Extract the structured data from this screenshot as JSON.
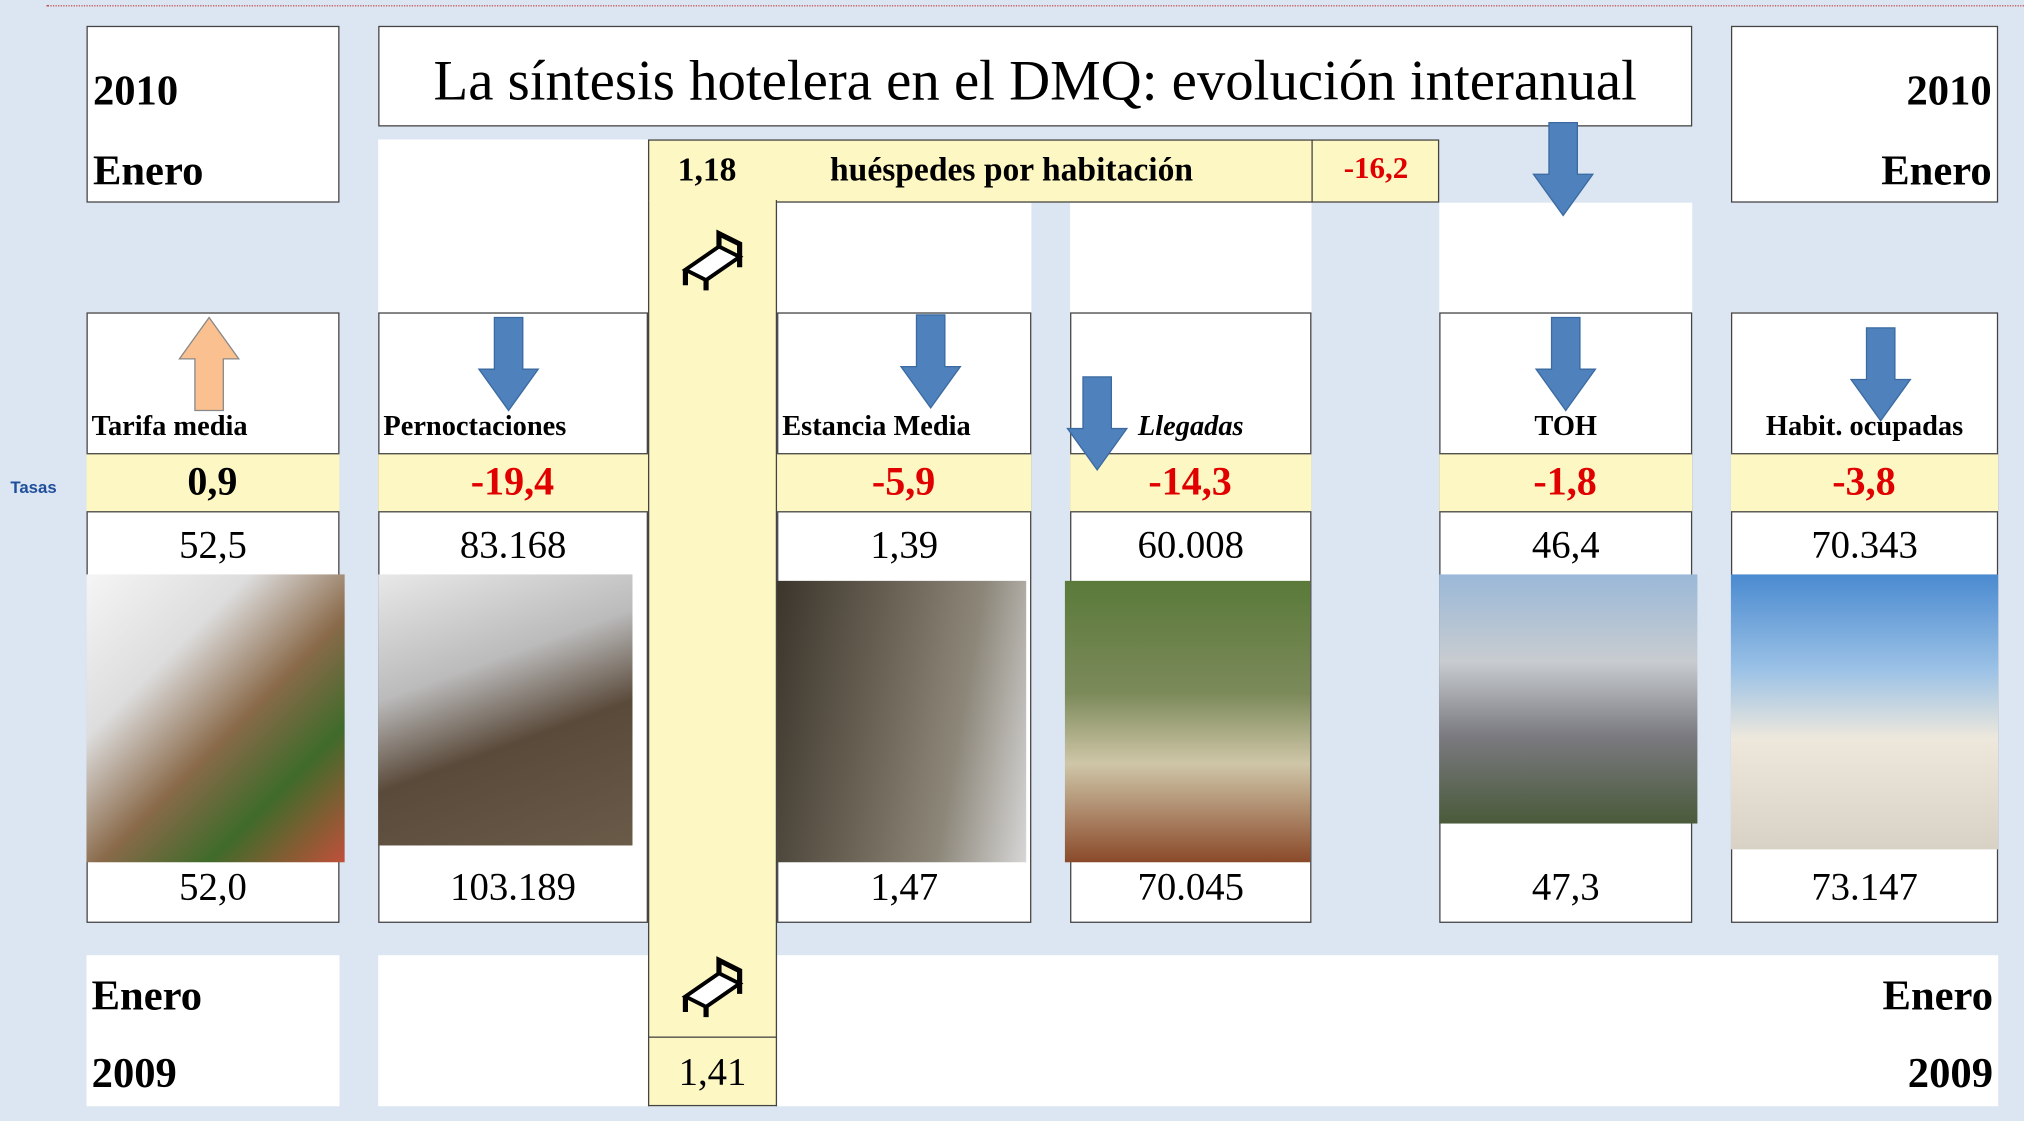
{
  "header": {
    "left_year": "2010",
    "left_month": "Enero",
    "title": "La síntesis  hotelera en el DMQ: evolución interanual",
    "right_year": "2010",
    "right_month": "Enero"
  },
  "guests": {
    "current": "1,18",
    "label": "huéspedes  por habitación",
    "rate": "-16,2",
    "previous": "1,41"
  },
  "side_label": "Tasas",
  "indicators": [
    {
      "name": "Tarifa media",
      "rate": "0,9",
      "current": "52,5",
      "previous": "52,0"
    },
    {
      "name": "Pernoctaciones",
      "rate": "-19,4",
      "current": "83.168",
      "previous": "103.189"
    },
    {
      "name": "Estancia Media",
      "rate": "-5,9",
      "current": "1,39",
      "previous": "1,47"
    },
    {
      "name": "Llegadas",
      "rate": "-14,3",
      "current": "60.008",
      "previous": "70.045"
    },
    {
      "name": "TOH",
      "rate": "-1,8",
      "current": "46,4",
      "previous": "47,3"
    },
    {
      "name": "Habit. ocupadas",
      "rate": "-3,8",
      "current": "70.343",
      "previous": "73.147"
    }
  ],
  "footer": {
    "left_month": "Enero",
    "left_year": "2009",
    "right_month": "Enero",
    "right_year": "2009"
  }
}
